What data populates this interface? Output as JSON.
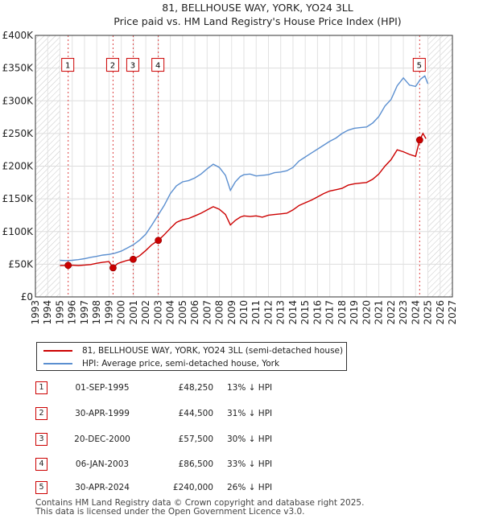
{
  "chart_data": {
    "type": "line",
    "title": "81, BELLHOUSE WAY, YORK, YO24 3LL",
    "subtitle": "Price paid vs. HM Land Registry's House Price Index (HPI)",
    "xlim": [
      1993,
      2027
    ],
    "ylim": [
      0,
      400000
    ],
    "x_ticks": [
      "1993",
      "1994",
      "1995",
      "1996",
      "1997",
      "1998",
      "1999",
      "2000",
      "2001",
      "2002",
      "2003",
      "2004",
      "2005",
      "2006",
      "2007",
      "2008",
      "2009",
      "2010",
      "2011",
      "2012",
      "2013",
      "2014",
      "2015",
      "2016",
      "2017",
      "2018",
      "2019",
      "2020",
      "2021",
      "2022",
      "2023",
      "2024",
      "2025",
      "2026",
      "2027"
    ],
    "y_ticks": [
      {
        "value": 0,
        "label": "£0"
      },
      {
        "value": 50000,
        "label": "£50K"
      },
      {
        "value": 100000,
        "label": "£100K"
      },
      {
        "value": 150000,
        "label": "£150K"
      },
      {
        "value": 200000,
        "label": "£200K"
      },
      {
        "value": 250000,
        "label": "£250K"
      },
      {
        "value": 300000,
        "label": "£300K"
      },
      {
        "value": 350000,
        "label": "£350K"
      },
      {
        "value": 400000,
        "label": "£400K"
      }
    ],
    "hatched_before": 1995.0,
    "hatched_after": 2025.0,
    "series": [
      {
        "name": "81, BELLHOUSE WAY, YORK, YO24 3LL (semi-detached house)",
        "color": "#cc0000",
        "points": [
          [
            1995.0,
            48000
          ],
          [
            1995.67,
            48250
          ],
          [
            1996.0,
            48500
          ],
          [
            1996.5,
            48000
          ],
          [
            1997.0,
            48800
          ],
          [
            1997.5,
            49500
          ],
          [
            1998.0,
            51500
          ],
          [
            1998.5,
            53000
          ],
          [
            1999.0,
            54000
          ],
          [
            1999.33,
            44500
          ],
          [
            1999.7,
            51000
          ],
          [
            2000.0,
            53000
          ],
          [
            2000.5,
            56000
          ],
          [
            2000.97,
            57500
          ],
          [
            2001.5,
            63000
          ],
          [
            2002.0,
            71000
          ],
          [
            2002.5,
            80000
          ],
          [
            2003.02,
            86500
          ],
          [
            2003.5,
            95000
          ],
          [
            2004.0,
            105000
          ],
          [
            2004.5,
            114000
          ],
          [
            2005.0,
            118000
          ],
          [
            2005.5,
            120000
          ],
          [
            2006.0,
            124000
          ],
          [
            2006.5,
            128000
          ],
          [
            2007.0,
            133000
          ],
          [
            2007.5,
            138000
          ],
          [
            2008.0,
            134000
          ],
          [
            2008.5,
            126000
          ],
          [
            2008.9,
            110000
          ],
          [
            2009.3,
            117000
          ],
          [
            2009.7,
            122000
          ],
          [
            2010.0,
            124000
          ],
          [
            2010.5,
            123000
          ],
          [
            2011.0,
            124000
          ],
          [
            2011.5,
            122000
          ],
          [
            2012.0,
            125000
          ],
          [
            2012.5,
            126000
          ],
          [
            2013.0,
            127000
          ],
          [
            2013.5,
            128000
          ],
          [
            2014.0,
            133000
          ],
          [
            2014.5,
            140000
          ],
          [
            2015.0,
            144000
          ],
          [
            2015.5,
            148000
          ],
          [
            2016.0,
            153000
          ],
          [
            2016.5,
            158000
          ],
          [
            2017.0,
            162000
          ],
          [
            2017.5,
            164000
          ],
          [
            2018.0,
            166000
          ],
          [
            2018.5,
            171000
          ],
          [
            2019.0,
            173000
          ],
          [
            2019.5,
            174000
          ],
          [
            2020.0,
            175000
          ],
          [
            2020.5,
            180000
          ],
          [
            2021.0,
            188000
          ],
          [
            2021.5,
            200000
          ],
          [
            2022.0,
            210000
          ],
          [
            2022.5,
            225000
          ],
          [
            2023.0,
            222000
          ],
          [
            2023.5,
            218000
          ],
          [
            2024.0,
            215000
          ],
          [
            2024.33,
            240000
          ],
          [
            2024.6,
            250000
          ],
          [
            2024.85,
            242000
          ]
        ]
      },
      {
        "name": "HPI: Average price, semi-detached house, York",
        "color": "#5b8fd0",
        "points": [
          [
            1995.0,
            56000
          ],
          [
            1995.5,
            55500
          ],
          [
            1996.0,
            56000
          ],
          [
            1996.5,
            57000
          ],
          [
            1997.0,
            58500
          ],
          [
            1997.5,
            60500
          ],
          [
            1998.0,
            62000
          ],
          [
            1998.5,
            64000
          ],
          [
            1999.0,
            65000
          ],
          [
            1999.5,
            67000
          ],
          [
            2000.0,
            70000
          ],
          [
            2000.5,
            75000
          ],
          [
            2001.0,
            80000
          ],
          [
            2001.5,
            87000
          ],
          [
            2002.0,
            96000
          ],
          [
            2002.5,
            110000
          ],
          [
            2003.0,
            125000
          ],
          [
            2003.5,
            140000
          ],
          [
            2004.0,
            158000
          ],
          [
            2004.5,
            170000
          ],
          [
            2005.0,
            176000
          ],
          [
            2005.5,
            178000
          ],
          [
            2006.0,
            182000
          ],
          [
            2006.5,
            188000
          ],
          [
            2007.0,
            196000
          ],
          [
            2007.5,
            203000
          ],
          [
            2008.0,
            198000
          ],
          [
            2008.5,
            186000
          ],
          [
            2008.9,
            163000
          ],
          [
            2009.3,
            176000
          ],
          [
            2009.7,
            184000
          ],
          [
            2010.0,
            187000
          ],
          [
            2010.5,
            188000
          ],
          [
            2011.0,
            185000
          ],
          [
            2011.5,
            186000
          ],
          [
            2012.0,
            187000
          ],
          [
            2012.5,
            190000
          ],
          [
            2013.0,
            191000
          ],
          [
            2013.5,
            193000
          ],
          [
            2014.0,
            198000
          ],
          [
            2014.5,
            208000
          ],
          [
            2015.0,
            214000
          ],
          [
            2015.5,
            220000
          ],
          [
            2016.0,
            226000
          ],
          [
            2016.5,
            232000
          ],
          [
            2017.0,
            238000
          ],
          [
            2017.5,
            243000
          ],
          [
            2018.0,
            250000
          ],
          [
            2018.5,
            255000
          ],
          [
            2019.0,
            258000
          ],
          [
            2019.5,
            259000
          ],
          [
            2020.0,
            260000
          ],
          [
            2020.5,
            266000
          ],
          [
            2021.0,
            276000
          ],
          [
            2021.5,
            292000
          ],
          [
            2022.0,
            302000
          ],
          [
            2022.5,
            323000
          ],
          [
            2023.0,
            335000
          ],
          [
            2023.5,
            324000
          ],
          [
            2024.0,
            322000
          ],
          [
            2024.4,
            333000
          ],
          [
            2024.75,
            338000
          ],
          [
            2025.0,
            326000
          ]
        ]
      }
    ],
    "sales": [
      {
        "num": "1",
        "x": 1995.67,
        "price": 48250,
        "date": "01-SEP-1995",
        "price_label": "£48,250",
        "hpi": "13% ↓ HPI"
      },
      {
        "num": "2",
        "x": 1999.33,
        "price": 44500,
        "date": "30-APR-1999",
        "price_label": "£44,500",
        "hpi": "31% ↓ HPI"
      },
      {
        "num": "3",
        "x": 2000.97,
        "price": 57500,
        "date": "20-DEC-2000",
        "price_label": "£57,500",
        "hpi": "30% ↓ HPI"
      },
      {
        "num": "4",
        "x": 2003.02,
        "price": 86500,
        "date": "06-JAN-2003",
        "price_label": "£86,500",
        "hpi": "33% ↓ HPI"
      },
      {
        "num": "5",
        "x": 2024.33,
        "price": 240000,
        "date": "30-APR-2024",
        "price_label": "£240,000",
        "hpi": "26% ↓ HPI"
      }
    ],
    "marker_label_value": 355000
  },
  "legend": {
    "property_label": "81, BELLHOUSE WAY, YORK, YO24 3LL (semi-detached house)",
    "hpi_label": "HPI: Average price, semi-detached house, York",
    "property_color": "#cc0000",
    "hpi_color": "#5b8fd0"
  },
  "footer": {
    "line1": "Contains HM Land Registry data © Crown copyright and database right 2025.",
    "line2": "This data is licensed under the Open Government Licence v3.0."
  }
}
